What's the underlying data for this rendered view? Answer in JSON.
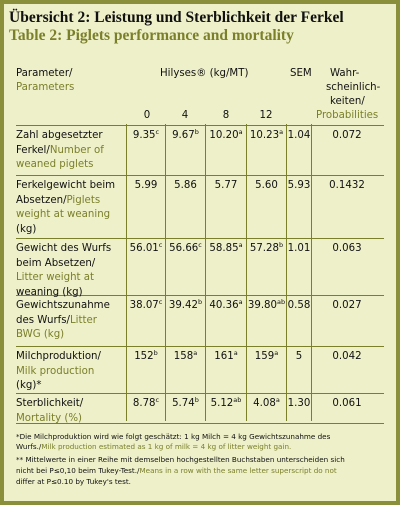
{
  "title_de": "Übersicht 2: Leistung und Sterblichkeit der Ferkel",
  "title_en": "Table 2: Piglets performance and mortality",
  "header": {
    "parameter_de": "Parameter/",
    "parameter_en": "Parameters",
    "hilyses": "Hilyses® (kg/MT)",
    "sem": "SEM",
    "prob_de_1": "Wahr-",
    "prob_de_2": "scheinlich-",
    "prob_de_3": "keiten/",
    "prob_en": "Probabilities",
    "doses": [
      "0",
      "4",
      "8",
      "12"
    ]
  },
  "rows": [
    {
      "label_lines": [
        [
          "Zahl abgesetzter",
          ""
        ],
        [
          "Ferkel/",
          "Number of"
        ],
        [
          "",
          "weaned piglets"
        ]
      ],
      "values": [
        [
          "9.35",
          "c"
        ],
        [
          "9.67",
          "b"
        ],
        [
          "10.20",
          "a"
        ],
        [
          "10.23",
          "a"
        ]
      ],
      "sem": "1.04",
      "prob": "0.072"
    },
    {
      "label_lines": [
        [
          "Ferkelgewicht beim",
          ""
        ],
        [
          "Absetzen/",
          "Piglets"
        ],
        [
          "",
          "weight at weaning"
        ],
        [
          "(kg)",
          ""
        ]
      ],
      "values": [
        [
          "5.99",
          ""
        ],
        [
          "5.86",
          ""
        ],
        [
          "5.77",
          ""
        ],
        [
          "5.60",
          ""
        ]
      ],
      "sem": "5.93",
      "prob": "0.1432"
    },
    {
      "label_lines": [
        [
          "Gewicht des Wurfs",
          ""
        ],
        [
          "beim Absetzen/",
          ""
        ],
        [
          "",
          "Litter weight at"
        ],
        [
          "weaning (kg)",
          ""
        ]
      ],
      "values": [
        [
          "56.01",
          "c"
        ],
        [
          "56.66",
          "c"
        ],
        [
          "58.85",
          "a"
        ],
        [
          "57.28",
          "b"
        ]
      ],
      "sem": "1.01",
      "prob": "0.063"
    },
    {
      "label_lines": [
        [
          "Gewichtszunahme",
          ""
        ],
        [
          "des Wurfs/",
          "Litter"
        ],
        [
          "",
          "BWG (kg)"
        ]
      ],
      "values": [
        [
          "38.07",
          "c"
        ],
        [
          "39.42",
          "b"
        ],
        [
          "40.36",
          "a"
        ],
        [
          "39.80",
          "ab"
        ]
      ],
      "sem": "0.58",
      "prob": "0.027"
    },
    {
      "label_lines": [
        [
          "Milchproduktion/",
          ""
        ],
        [
          "",
          "Milk production"
        ],
        [
          "(kg)*",
          ""
        ]
      ],
      "values": [
        [
          "152",
          "b"
        ],
        [
          "158",
          "a"
        ],
        [
          "161",
          "a"
        ],
        [
          "159",
          "a"
        ]
      ],
      "sem": "5",
      "prob": "0.042"
    },
    {
      "label_lines": [
        [
          "Sterblichkeit/",
          ""
        ],
        [
          "",
          "Mortality (%)"
        ]
      ],
      "values": [
        [
          "8.78",
          "c"
        ],
        [
          "5.74",
          "b"
        ],
        [
          "5.12",
          "ab"
        ],
        [
          "4.08",
          "a"
        ]
      ],
      "sem": "1.30",
      "prob": "0.061"
    }
  ],
  "footnote_1a": "*Die Milchproduktion wird wie folgt geschätzt: 1 kg Milch = 4 kg Gewichtszunahme des",
  "footnote_1b_de": "Wurfs./",
  "footnote_1b_en": "Milk production estimated as 1 kg of milk = 4 kg of litter weight gain.",
  "footnote_2a": "** Mittelwerte in einer Reihe mit demselben hochgestellten Buchstaben unterscheiden sich",
  "footnote_2b_de": "nicht bei P≤0,10 beim Tukey-Test./",
  "footnote_2b_en": "Means in a row with the same letter superscript do not",
  "footnote_2c_en": "differ at P≤0.10 by Tukey's test."
}
